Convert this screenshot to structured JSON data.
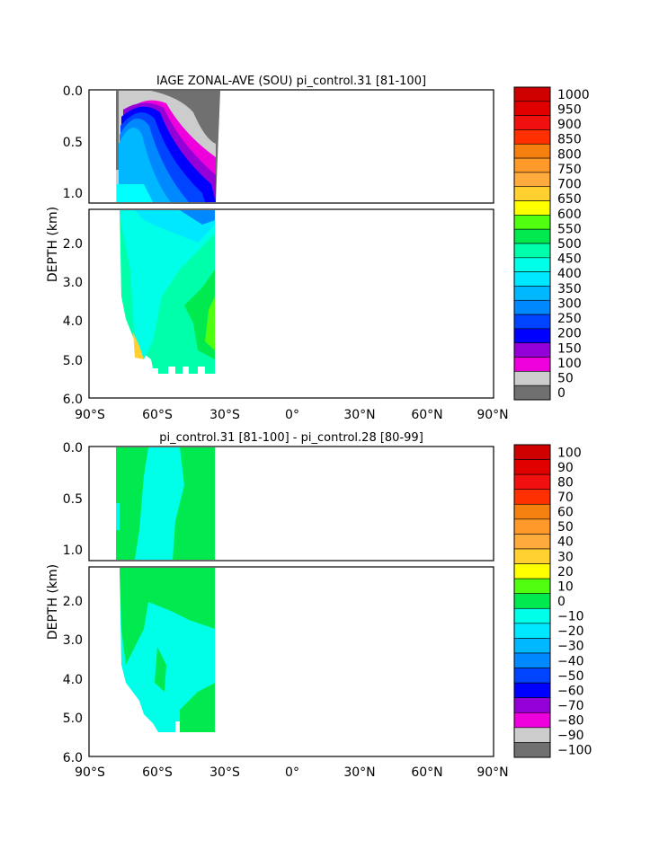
{
  "chart_data": [
    {
      "type": "heatmap",
      "title": "IAGE ZONAL-AVE (SOU) pi_control.31 [81-100]",
      "ylabel": "DEPTH (km)",
      "xlabel": "",
      "x_ticks": [
        "90°S",
        "60°S",
        "30°S",
        "0°",
        "30°N",
        "60°N",
        "90°N"
      ],
      "xlim": [
        -90,
        90
      ],
      "y_ticks": [
        "0.0",
        "0.5",
        "1.0",
        "2.0",
        "3.0",
        "4.0",
        "5.0",
        "6.0"
      ],
      "ylim_upper": [
        0,
        1.1
      ],
      "ylim_lower": [
        1.1,
        6.0
      ],
      "domain_lat": [
        -76,
        -34
      ],
      "bottom_depth_km": 5.4,
      "colorbar": {
        "labels": [
          "1000",
          "950",
          "900",
          "850",
          "800",
          "750",
          "700",
          "650",
          "600",
          "550",
          "500",
          "450",
          "400",
          "350",
          "300",
          "250",
          "200",
          "150",
          "100",
          "50",
          "0"
        ],
        "colors": [
          "#ce0000",
          "#e00000",
          "#f01010",
          "#ff3000",
          "#f58010",
          "#ff9a2a",
          "#ffaa3c",
          "#ffd030",
          "#ffff00",
          "#50ff10",
          "#00ea50",
          "#00ffaa",
          "#00ffe8",
          "#00e8ff",
          "#00b8ff",
          "#0088ff",
          "#0044ff",
          "#0000ff",
          "#9400d8",
          "#ee00dd",
          "#cccccc",
          "#707070"
        ]
      },
      "bands": [
        {
          "label": "0-50",
          "color": "#707070",
          "values_by_lat": []
        },
        {
          "label": "50-100",
          "color": "#cccccc"
        },
        {
          "label": "100-150",
          "color": "#ee00dd"
        },
        {
          "label": "150-200",
          "color": "#9400d8"
        },
        {
          "label": "200-250",
          "color": "#0000ff"
        },
        {
          "label": "250-300",
          "color": "#0044ff"
        },
        {
          "label": "300-350",
          "color": "#0088ff"
        },
        {
          "label": "350-400",
          "color": "#00b8ff"
        },
        {
          "label": "400-450",
          "color": "#00e8ff"
        },
        {
          "label": "450-500",
          "color": "#00ffe8"
        },
        {
          "label": "500-550",
          "color": "#00ffaa"
        },
        {
          "label": "550-600",
          "color": "#00ea50"
        }
      ]
    },
    {
      "type": "heatmap",
      "title": "pi_control.31 [81-100] - pi_control.28 [80-99]",
      "ylabel": "DEPTH (km)",
      "xlabel": "",
      "x_ticks": [
        "90°S",
        "60°S",
        "30°S",
        "0°",
        "30°N",
        "60°N",
        "90°N"
      ],
      "xlim": [
        -90,
        90
      ],
      "y_ticks": [
        "0.0",
        "0.5",
        "1.0",
        "2.0",
        "3.0",
        "4.0",
        "5.0",
        "6.0"
      ],
      "ylim_upper": [
        0,
        1.1
      ],
      "ylim_lower": [
        1.1,
        6.0
      ],
      "domain_lat": [
        -76,
        -34
      ],
      "bottom_depth_km": 5.4,
      "colorbar": {
        "labels": [
          "100",
          "90",
          "80",
          "70",
          "60",
          "50",
          "40",
          "30",
          "20",
          "10",
          "0",
          "−10",
          "−20",
          "−30",
          "−40",
          "−50",
          "−60",
          "−70",
          "−80",
          "−90",
          "−100"
        ],
        "colors": [
          "#ce0000",
          "#e00000",
          "#f01010",
          "#ff3000",
          "#f58010",
          "#ff9a2a",
          "#ffaa3c",
          "#ffd030",
          "#ffff00",
          "#50ff10",
          "#00ea50",
          "#00ffe8",
          "#00e8ff",
          "#00b8ff",
          "#0088ff",
          "#0044ff",
          "#0000ff",
          "#9400d8",
          "#ee00dd",
          "#cccccc",
          "#707070"
        ]
      },
      "regions": [
        {
          "label": "0-10",
          "color": "#00ea50"
        },
        {
          "label": "-10-0",
          "color": "#00ffe8"
        },
        {
          "label": "-20--10",
          "color": "#00e8ff"
        }
      ]
    }
  ]
}
